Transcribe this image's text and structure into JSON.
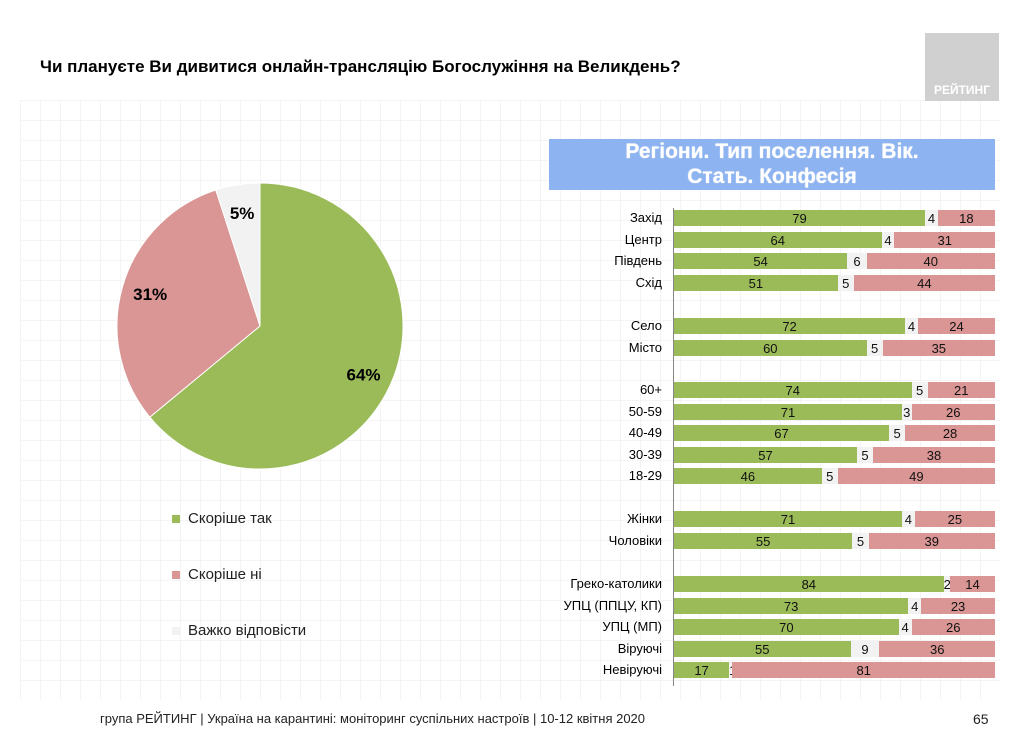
{
  "title": "Чи плануєте Ви дивитися онлайн-трансляцію Богослужіння на Великдень?",
  "logo": "РЕЙТИНГ",
  "banner": [
    "Регіони. Тип поселення. Вік.",
    "Стать. Конфесія"
  ],
  "footer": "група РЕЙТИНГ | Україна на карантині: моніторинг суспільних настроїв  | 10-12 квітня  2020",
  "page_number": "65",
  "colors": {
    "yes": "#9bbb59",
    "no": "#d99694",
    "hard": "#f2f2f2"
  },
  "chart_data": [
    {
      "type": "pie",
      "slices": [
        {
          "name": "Скоріше  так",
          "value": 64,
          "label": "64%"
        },
        {
          "name": "Скоріше  ні",
          "value": 31,
          "label": "31%"
        },
        {
          "name": "Важко відповісти",
          "value": 5,
          "label": "5%"
        }
      ],
      "legend": "bottom"
    },
    {
      "type": "bar",
      "stacked": true,
      "orientation": "horizontal",
      "groups": [
        {
          "rows": [
            {
              "label": "Захід",
              "values": [
                79,
                4,
                18
              ]
            },
            {
              "label": "Центр",
              "values": [
                64,
                4,
                31
              ]
            },
            {
              "label": "Південь",
              "values": [
                54,
                6,
                40
              ]
            },
            {
              "label": "Схід",
              "values": [
                51,
                5,
                44
              ]
            }
          ]
        },
        {
          "rows": [
            {
              "label": "Село",
              "values": [
                72,
                4,
                24
              ]
            },
            {
              "label": "Місто",
              "values": [
                60,
                5,
                35
              ]
            }
          ]
        },
        {
          "rows": [
            {
              "label": "60+",
              "values": [
                74,
                5,
                21
              ]
            },
            {
              "label": "50-59",
              "values": [
                71,
                3,
                26
              ]
            },
            {
              "label": "40-49",
              "values": [
                67,
                5,
                28
              ]
            },
            {
              "label": "30-39",
              "values": [
                57,
                5,
                38
              ]
            },
            {
              "label": "18-29",
              "values": [
                46,
                5,
                49
              ]
            }
          ]
        },
        {
          "rows": [
            {
              "label": "Жінки",
              "values": [
                71,
                4,
                25
              ]
            },
            {
              "label": "Чоловіки",
              "values": [
                55,
                5,
                39
              ]
            }
          ]
        },
        {
          "rows": [
            {
              "label": "Греко-католики",
              "values": [
                84,
                2,
                14
              ]
            },
            {
              "label": "УПЦ (ППЦУ, КП)",
              "values": [
                73,
                4,
                23
              ]
            },
            {
              "label": "УПЦ (МП)",
              "values": [
                70,
                4,
                26
              ]
            },
            {
              "label": "Віруючі",
              "values": [
                55,
                9,
                36
              ]
            },
            {
              "label": "Невіруючі",
              "values": [
                17,
                1,
                81
              ]
            }
          ]
        }
      ]
    }
  ]
}
